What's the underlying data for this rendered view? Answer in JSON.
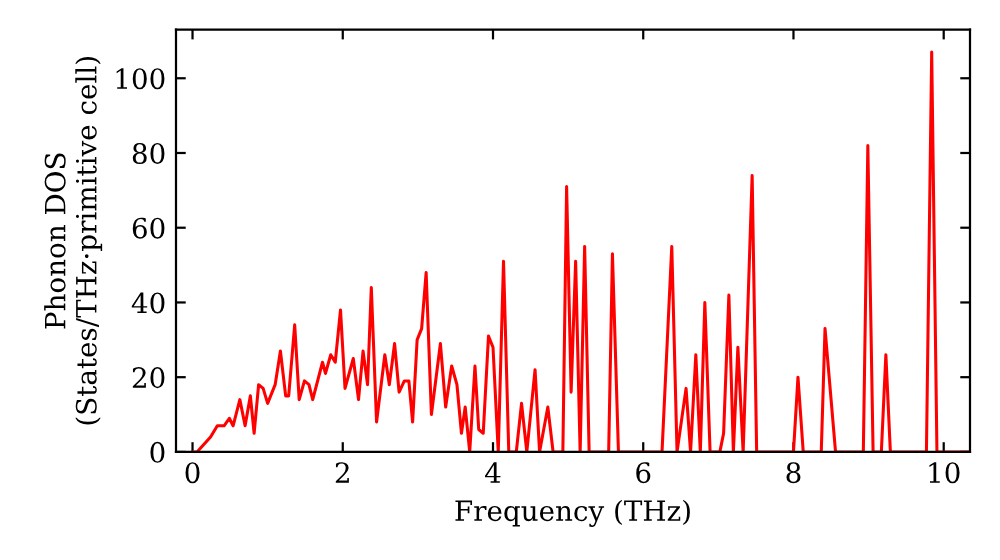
{
  "chart_data": {
    "type": "line",
    "xlabel": "Frequency (THz)",
    "ylabel": "Phonon DOS\n(States/THz·primitive cell)",
    "xlim": [
      -0.22,
      10.35
    ],
    "ylim": [
      0,
      113
    ],
    "xticks": [
      0,
      2,
      4,
      6,
      8,
      10
    ],
    "yticks": [
      0,
      20,
      40,
      60,
      80,
      100
    ],
    "grid": false,
    "marker": "none",
    "line_style": "solid",
    "series": [
      {
        "color": "#ff0000",
        "x": [
          0,
          0.06,
          0.24,
          0.33,
          0.42,
          0.49,
          0.54,
          0.63,
          0.7,
          0.77,
          0.82,
          0.88,
          0.94,
          1.0,
          1.1,
          1.17,
          1.24,
          1.28,
          1.36,
          1.42,
          1.49,
          1.55,
          1.6,
          1.73,
          1.77,
          1.84,
          1.9,
          1.97,
          2.03,
          2.14,
          2.21,
          2.27,
          2.33,
          2.38,
          2.45,
          2.56,
          2.62,
          2.69,
          2.75,
          2.82,
          2.88,
          2.93,
          2.99,
          3.05,
          3.11,
          3.18,
          3.3,
          3.37,
          3.45,
          3.52,
          3.58,
          3.63,
          3.69,
          3.76,
          3.81,
          3.87,
          3.94,
          4.0,
          4.07,
          4.14,
          4.21,
          4.31,
          4.38,
          4.45,
          4.56,
          4.62,
          4.73,
          4.8,
          4.93,
          4.98,
          5.04,
          5.1,
          5.16,
          5.22,
          5.28,
          5.54,
          5.59,
          5.67,
          6.25,
          6.38,
          6.45,
          6.57,
          6.63,
          6.7,
          6.76,
          6.82,
          6.89,
          7.02,
          7.07,
          7.14,
          7.2,
          7.26,
          7.33,
          7.45,
          7.51,
          8.0,
          8.06,
          8.13,
          8.37,
          8.42,
          8.56,
          8.93,
          8.99,
          9.06,
          9.17,
          9.23,
          9.29,
          9.77,
          9.84,
          9.91,
          10.35
        ],
        "values": [
          0,
          0,
          4,
          7,
          7,
          9,
          7,
          14,
          7,
          15,
          5,
          18,
          17,
          13,
          18,
          27,
          15,
          15,
          34,
          14,
          19,
          18,
          14,
          24,
          21,
          26,
          24,
          38,
          17,
          25,
          14,
          27,
          18,
          44,
          8,
          26,
          18,
          29,
          16,
          19,
          19,
          8,
          30,
          33,
          48,
          10,
          29,
          12,
          23,
          18,
          5,
          12,
          0,
          23,
          6,
          5,
          31,
          28,
          0,
          51,
          0,
          0,
          13,
          0,
          22,
          0,
          12,
          0,
          0,
          71,
          16,
          51,
          0,
          55,
          0,
          0,
          53,
          0,
          0,
          55,
          0,
          17,
          0,
          26,
          0,
          40,
          0,
          0,
          5,
          42,
          0,
          28,
          0,
          74,
          0,
          0,
          20,
          0,
          0,
          33,
          0,
          0,
          82,
          0,
          0,
          26,
          0,
          0,
          107,
          0,
          0
        ]
      }
    ]
  }
}
